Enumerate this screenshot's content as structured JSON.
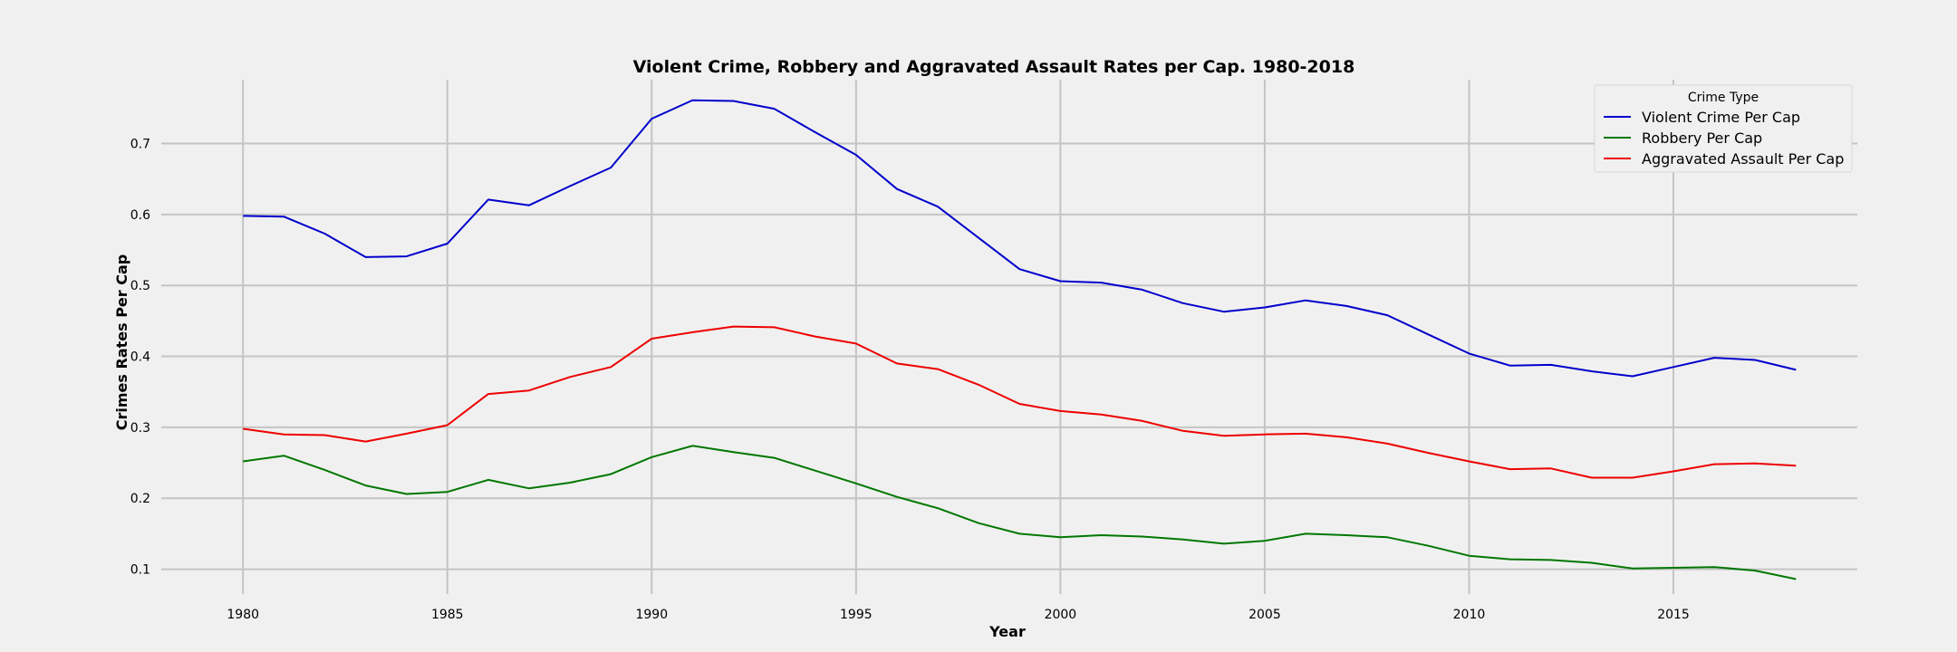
{
  "chart_data": {
    "type": "line",
    "title": "Violent Crime, Robbery and Aggravated Assault Rates per Cap. 1980-2018",
    "xlabel": "Year",
    "ylabel": "Crimes Rates Per Cap",
    "xlim": [
      1978,
      2019.5
    ],
    "ylim": [
      0.065,
      0.79
    ],
    "xticks": [
      1980,
      1985,
      1990,
      1995,
      2000,
      2005,
      2010,
      2015
    ],
    "yticks": [
      0.1,
      0.2,
      0.3,
      0.4,
      0.5,
      0.6,
      0.7
    ],
    "grid": true,
    "legend": {
      "title": "Crime Type",
      "placement": "top-right"
    },
    "x": [
      1980,
      1981,
      1982,
      1983,
      1984,
      1985,
      1986,
      1987,
      1988,
      1989,
      1990,
      1991,
      1992,
      1993,
      1994,
      1995,
      1996,
      1997,
      1998,
      1999,
      2000,
      2001,
      2002,
      2003,
      2004,
      2005,
      2006,
      2007,
      2008,
      2009,
      2010,
      2011,
      2012,
      2013,
      2014,
      2015,
      2016,
      2017,
      2018
    ],
    "series": [
      {
        "name": "Violent Crime Per Cap",
        "color": "#0000cc",
        "values": [
          0.598,
          0.597,
          0.573,
          0.54,
          0.541,
          0.559,
          0.621,
          0.613,
          0.64,
          0.666,
          0.735,
          0.761,
          0.76,
          0.749,
          0.716,
          0.684,
          0.636,
          0.611,
          0.567,
          0.523,
          0.506,
          0.504,
          0.494,
          0.475,
          0.463,
          0.469,
          0.479,
          0.471,
          0.458,
          0.431,
          0.404,
          0.387,
          0.388,
          0.379,
          0.372,
          0.385,
          0.398,
          0.395,
          0.381
        ]
      },
      {
        "name": "Robbery Per Cap",
        "color": "#007700",
        "values": [
          0.252,
          0.26,
          0.24,
          0.218,
          0.206,
          0.209,
          0.226,
          0.214,
          0.222,
          0.234,
          0.258,
          0.274,
          0.265,
          0.257,
          0.239,
          0.221,
          0.202,
          0.186,
          0.165,
          0.15,
          0.145,
          0.148,
          0.146,
          0.142,
          0.136,
          0.14,
          0.15,
          0.148,
          0.145,
          0.133,
          0.119,
          0.114,
          0.113,
          0.109,
          0.101,
          0.102,
          0.103,
          0.098,
          0.086
        ]
      },
      {
        "name": "Aggravated Assault Per Cap",
        "color": "#ee0000",
        "values": [
          0.298,
          0.29,
          0.289,
          0.28,
          0.291,
          0.303,
          0.347,
          0.352,
          0.371,
          0.385,
          0.425,
          0.434,
          0.442,
          0.441,
          0.428,
          0.418,
          0.39,
          0.382,
          0.36,
          0.333,
          0.323,
          0.318,
          0.309,
          0.295,
          0.288,
          0.29,
          0.291,
          0.286,
          0.277,
          0.264,
          0.252,
          0.241,
          0.242,
          0.229,
          0.229,
          0.238,
          0.248,
          0.249,
          0.246
        ]
      }
    ]
  }
}
